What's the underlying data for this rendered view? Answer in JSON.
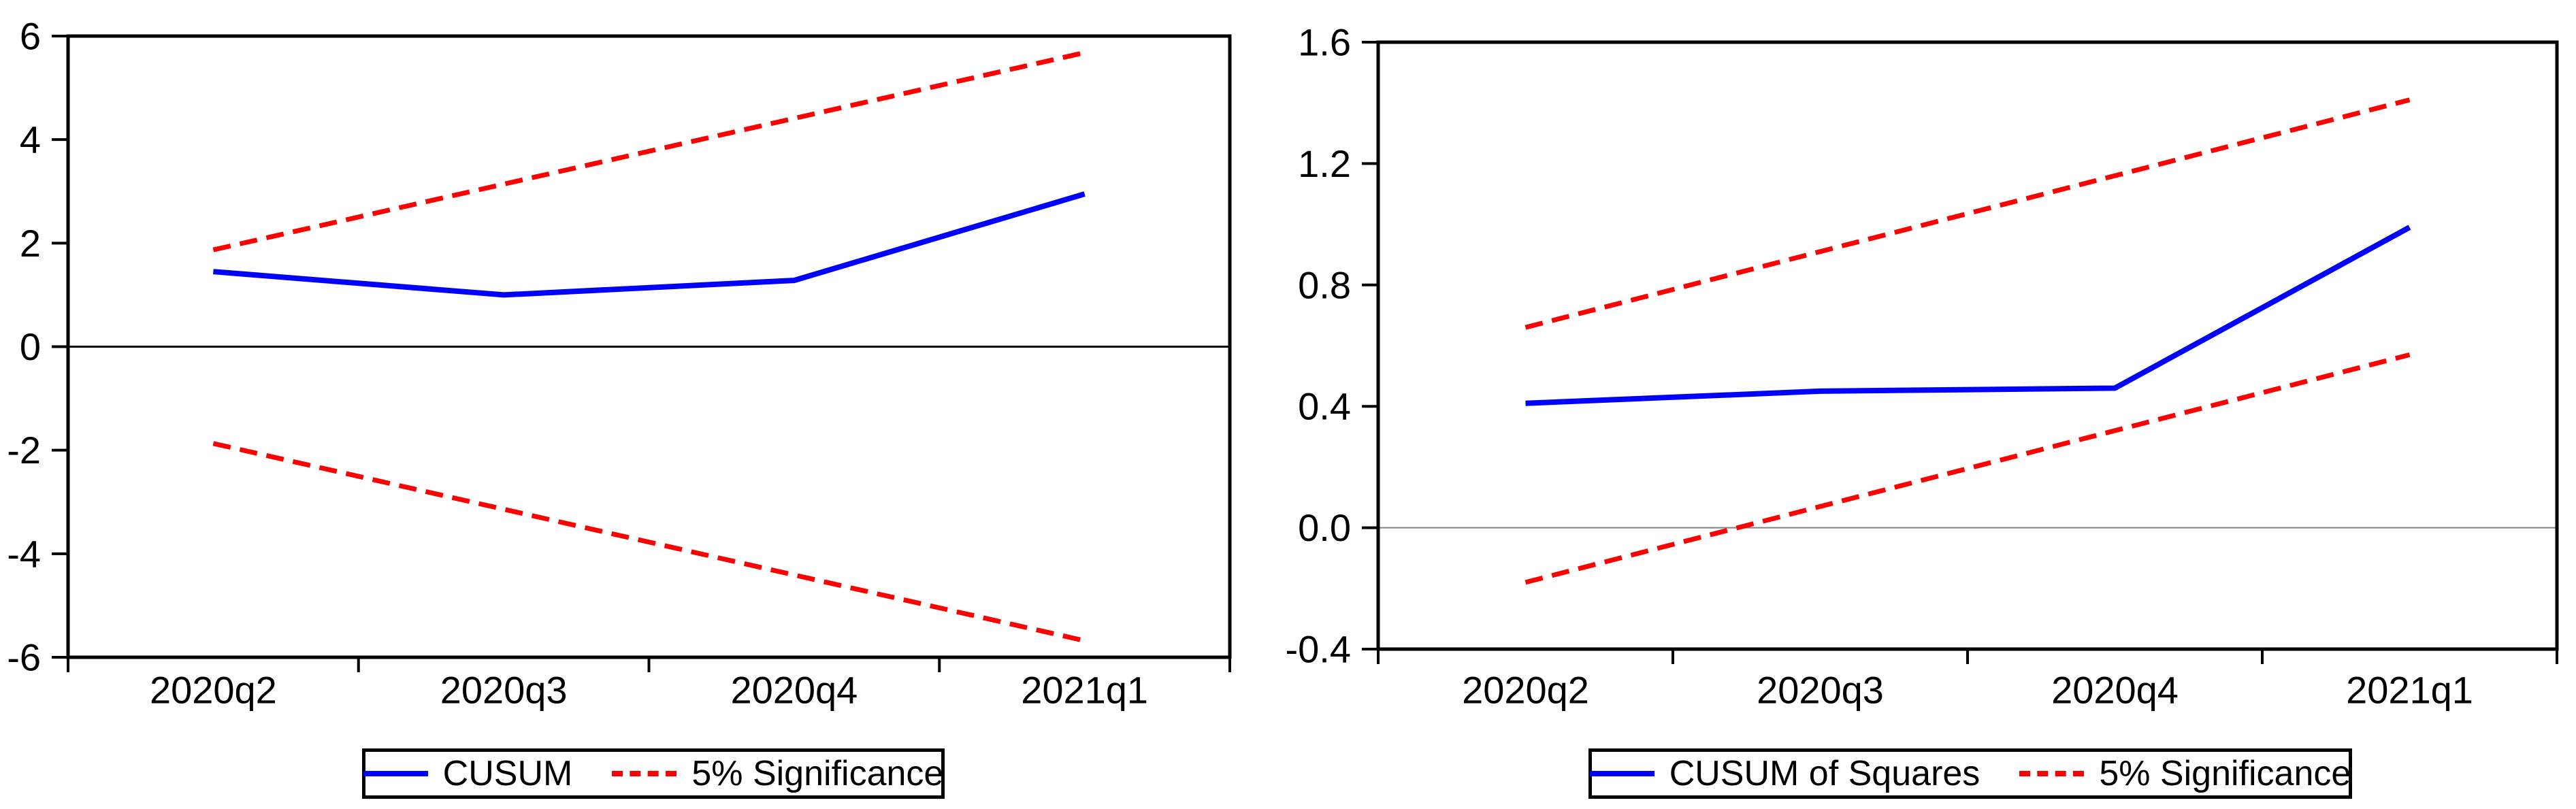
{
  "page": {
    "background": "#ffffff",
    "description": "CUSUM and CUSUM of Squares parameter-stability test plots with 5% significance bounds"
  },
  "colors": {
    "series_main": "#0000ff",
    "series_bound": "#ff0000",
    "axis": "#000000",
    "zero_line_left": "#000000",
    "zero_line_right": "#808080",
    "legend_border": "#000000"
  },
  "chart_data": [
    {
      "type": "line",
      "name": "cusum",
      "title": "",
      "categories": [
        "2020q2",
        "2020q3",
        "2020q4",
        "2021q1"
      ],
      "ylim": [
        -6,
        6
      ],
      "y_ticks": [
        6,
        4,
        2,
        0,
        -2,
        -4,
        -6
      ],
      "y_tick_labels": [
        "6",
        "4",
        "2",
        "0",
        "-2",
        "-4",
        "-6"
      ],
      "zero_line": 0,
      "grid": false,
      "legend_position": "bottom-center",
      "series": [
        {
          "name": "CUSUM",
          "color": "#0000ff",
          "style": "solid",
          "values": [
            1.45,
            1.0,
            1.28,
            2.95
          ]
        },
        {
          "name": "5% Significance upper",
          "color": "#ff0000",
          "style": "dashed",
          "values": [
            1.87,
            3.14,
            4.41,
            5.68
          ]
        },
        {
          "name": "5% Significance lower",
          "color": "#ff0000",
          "style": "dashed",
          "values": [
            -1.87,
            -3.14,
            -4.41,
            -5.68
          ]
        }
      ],
      "legend": [
        {
          "label": "CUSUM",
          "color": "#0000ff",
          "style": "solid"
        },
        {
          "label": "5% Significance",
          "color": "#ff0000",
          "style": "dashed"
        }
      ]
    },
    {
      "type": "line",
      "name": "cusum-of-squares",
      "title": "",
      "categories": [
        "2020q2",
        "2020q3",
        "2020q4",
        "2021q1"
      ],
      "ylim": [
        -0.4,
        1.6
      ],
      "y_ticks": [
        1.6,
        1.2,
        0.8,
        0.4,
        0.0,
        -0.4
      ],
      "y_tick_labels": [
        "1.6",
        "1.2",
        "0.8",
        "0.4",
        "0.0",
        "-0.4"
      ],
      "zero_line": 0,
      "grid": false,
      "legend_position": "bottom-center",
      "series": [
        {
          "name": "CUSUM of Squares",
          "color": "#0000ff",
          "style": "solid",
          "values": [
            0.41,
            0.45,
            0.46,
            0.99
          ]
        },
        {
          "name": "5% Significance upper",
          "color": "#ff0000",
          "style": "dashed",
          "values": [
            0.66,
            0.91,
            1.16,
            1.41
          ]
        },
        {
          "name": "5% Significance lower",
          "color": "#ff0000",
          "style": "dashed",
          "values": [
            -0.18,
            0.07,
            0.32,
            0.57
          ]
        }
      ],
      "legend": [
        {
          "label": "CUSUM of Squares",
          "color": "#0000ff",
          "style": "solid"
        },
        {
          "label": "5% Significance",
          "color": "#ff0000",
          "style": "dashed"
        }
      ]
    }
  ]
}
